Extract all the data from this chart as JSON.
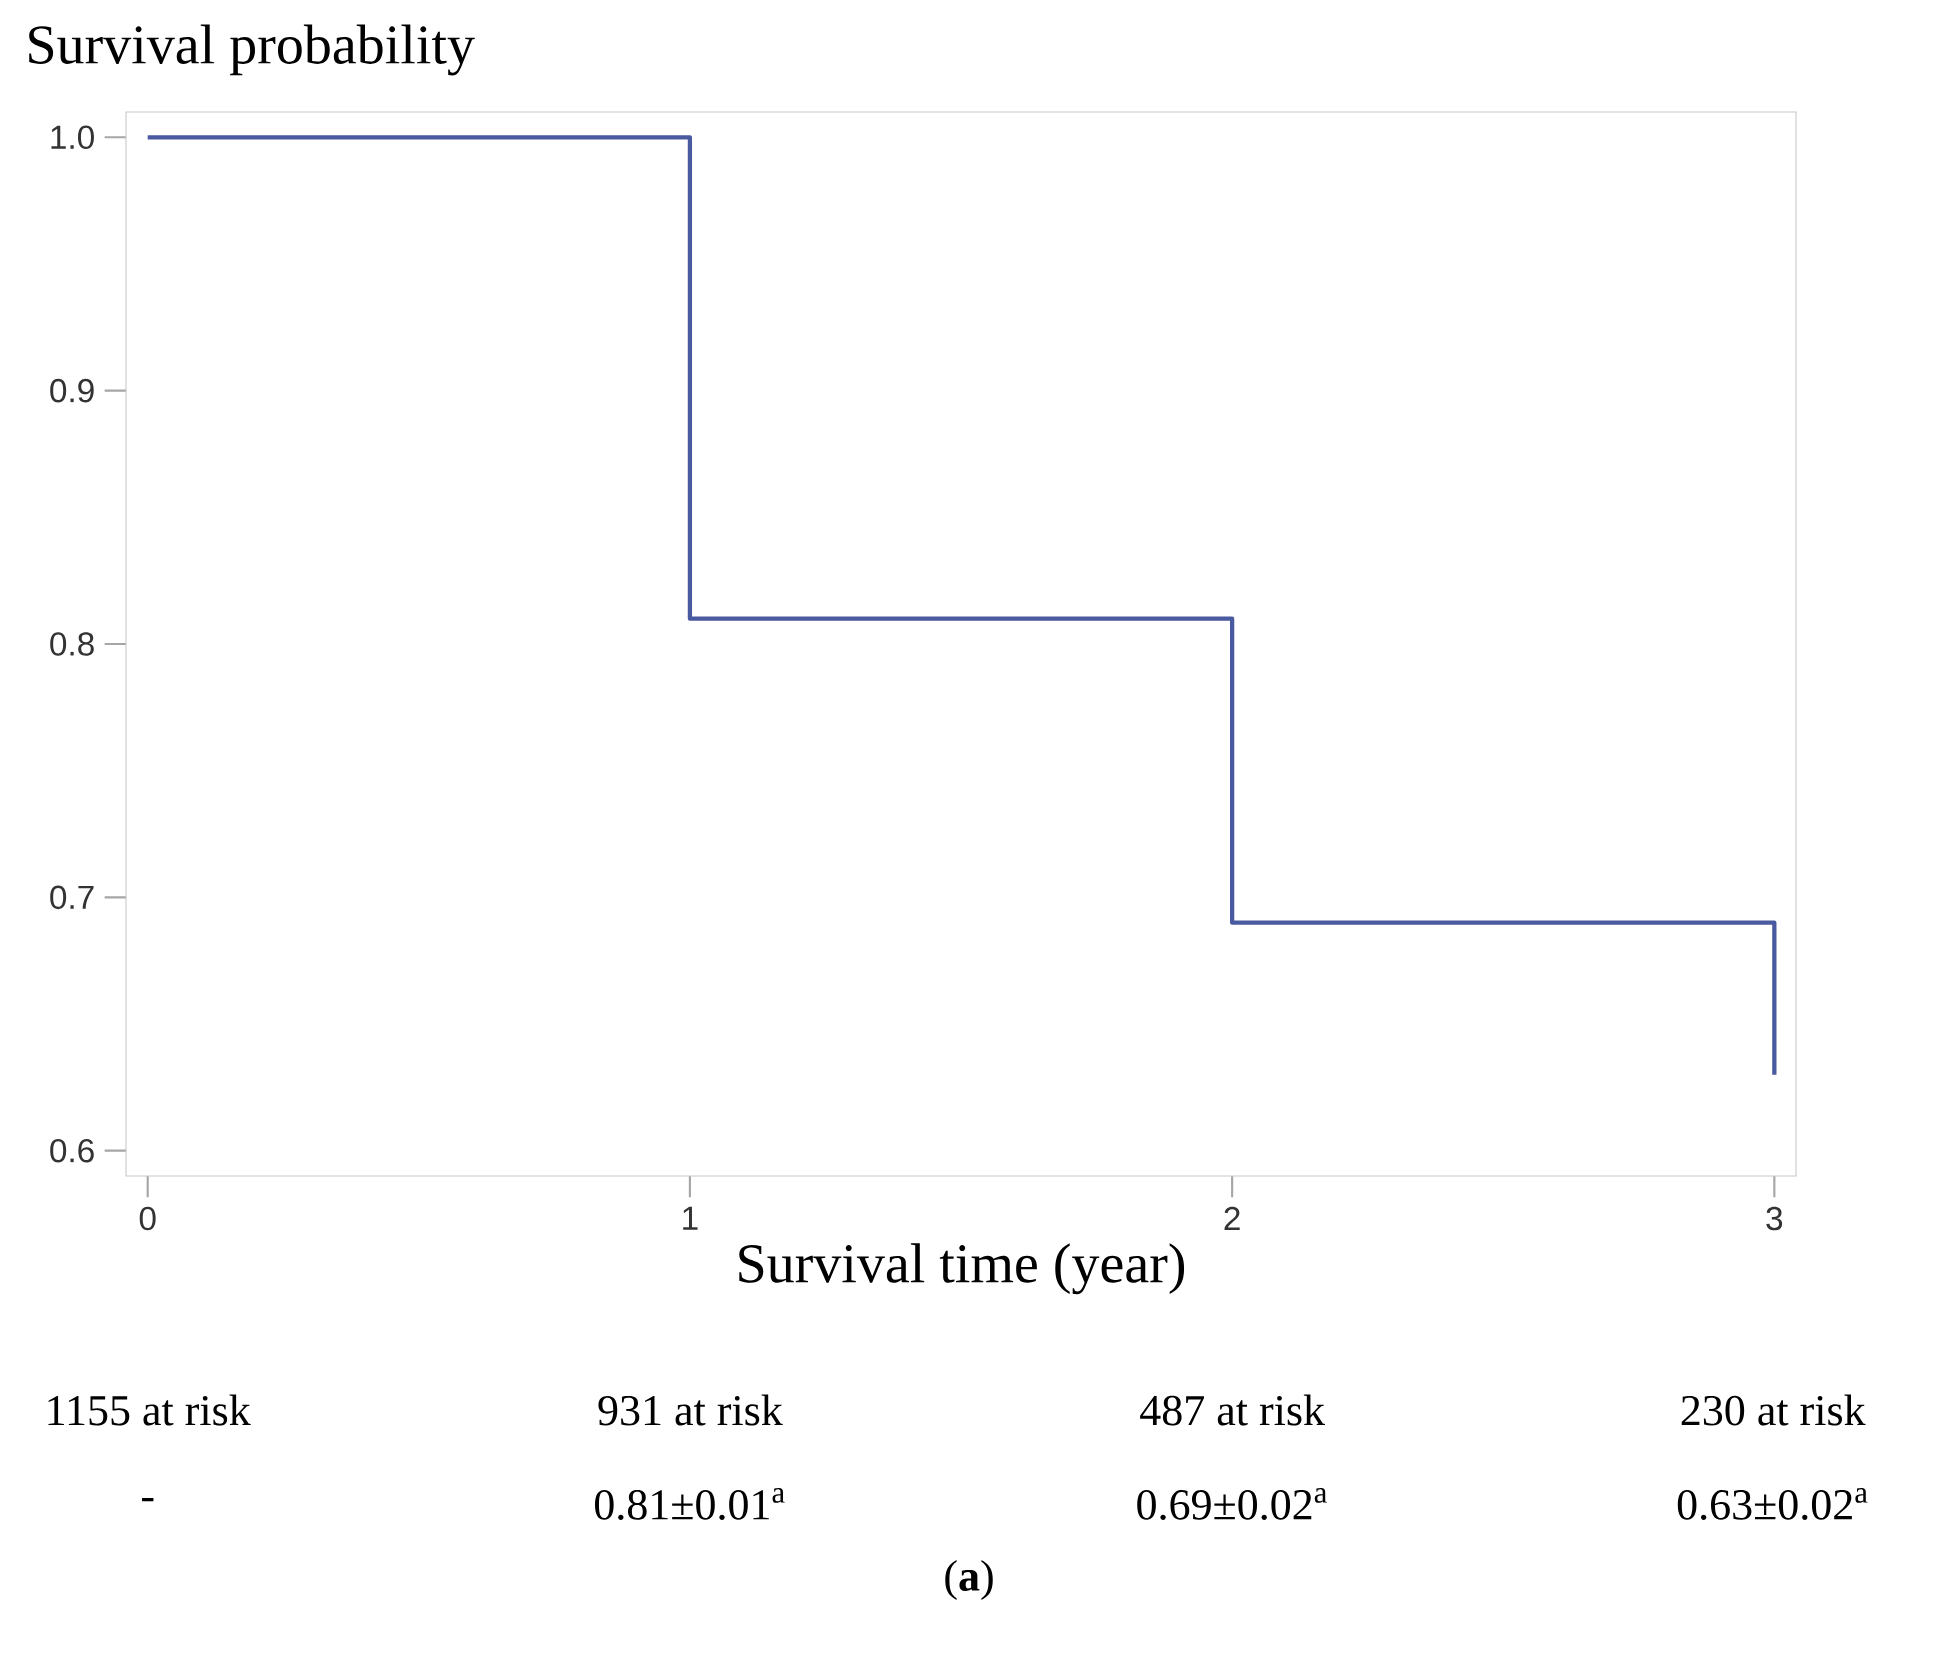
{
  "chart_data": {
    "type": "step",
    "ylabel": "Survival probability",
    "xlabel": "Survival time (year)",
    "x": [
      0,
      1,
      2,
      3
    ],
    "series": [
      {
        "color": "#4a5aa0",
        "values": [
          1.0,
          0.81,
          0.69,
          0.63
        ]
      }
    ],
    "xlim": [
      -0.04,
      3.04
    ],
    "ylim": [
      0.59,
      1.01
    ],
    "xticks": [
      0,
      1,
      2,
      3
    ],
    "yticks": [
      {
        "value": 0.6,
        "label": "0.6"
      },
      {
        "value": 0.7,
        "label": "0.7"
      },
      {
        "value": 0.8,
        "label": "0.8"
      },
      {
        "value": 0.9,
        "label": "0.9"
      },
      {
        "value": 1.0,
        "label": "1.0"
      }
    ],
    "annotations": [
      "1155 at risk",
      "931 at risk",
      "487 at risk",
      "230 at risk",
      "-",
      "0.81±0.01$^{a}$",
      "0.69±0.02$^{a}$",
      "0.63±0.02$^{a}$",
      "(**a**)"
    ]
  }
}
